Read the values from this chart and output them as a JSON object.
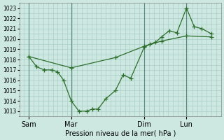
{
  "bg_color": "#cce8e0",
  "grid_color": "#aacfc8",
  "line_color": "#2d6e2d",
  "xlabel": "Pression niveau de la mer( hPa )",
  "ylim": [
    1012.5,
    1023.5
  ],
  "yticks": [
    1013,
    1014,
    1015,
    1016,
    1017,
    1018,
    1019,
    1020,
    1021,
    1022,
    1023
  ],
  "xtick_labels": [
    "Sam",
    "Mar",
    "Dim",
    "Lun"
  ],
  "xtick_positions": [
    0.05,
    0.27,
    0.65,
    0.87
  ],
  "xlim": [
    0.0,
    1.05
  ],
  "vline_positions": [
    0.05,
    0.27,
    0.65,
    0.87
  ],
  "series1_x": [
    0.05,
    0.09,
    0.13,
    0.17,
    0.2,
    0.23,
    0.27,
    0.31,
    0.35,
    0.38,
    0.41,
    0.45,
    0.5,
    0.54,
    0.58,
    0.65,
    0.68,
    0.71,
    0.74,
    0.78,
    0.82,
    0.87,
    0.91,
    0.95,
    1.0
  ],
  "series1_y": [
    1018.3,
    1017.3,
    1017.0,
    1017.0,
    1016.8,
    1016.0,
    1014.0,
    1013.0,
    1013.0,
    1013.2,
    1013.2,
    1014.2,
    1015.0,
    1016.5,
    1016.2,
    1019.2,
    1019.5,
    1019.7,
    1020.2,
    1020.8,
    1020.6,
    1023.0,
    1021.2,
    1021.0,
    1020.5
  ],
  "series2_x": [
    0.05,
    0.27,
    0.5,
    0.65,
    0.74,
    0.87,
    1.0
  ],
  "series2_y": [
    1018.3,
    1017.2,
    1018.2,
    1019.3,
    1019.8,
    1020.3,
    1020.2
  ]
}
